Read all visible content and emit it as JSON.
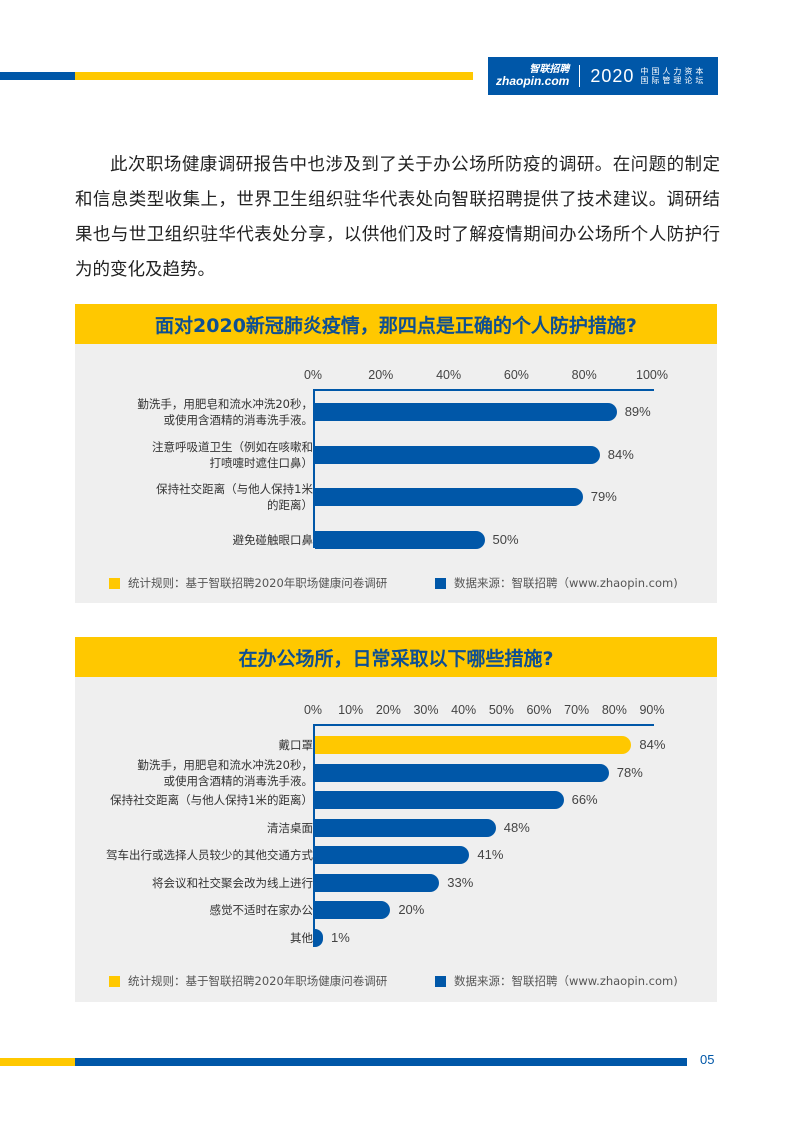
{
  "header": {
    "logo_brand_cn": "智联招聘",
    "logo_brand_en": "zhaopin.com",
    "logo_year": "2020",
    "logo_forum_line1": "中国人力资本",
    "logo_forum_line2": "国际管理论坛",
    "colors": {
      "blue": "#0057a8",
      "yellow": "#ffc800"
    }
  },
  "intro": {
    "text": "此次职场健康调研报告中也涉及到了关于办公场所防疫的调研。在问题的制定和信息类型收集上，世界卫生组织驻华代表处向智联招聘提供了技术建议。调研结果也与世卫组织驻华代表处分享，以供他们及时了解疫情期间办公场所个人防护行为的变化及趋势。"
  },
  "chart_data": [
    {
      "type": "bar",
      "orientation": "horizontal",
      "title": "面对2020新冠肺炎疫情，那四点是正确的个人防护措施?",
      "xlabel": "",
      "ylabel": "",
      "xlim": [
        0,
        100
      ],
      "x_ticks": [
        "0%",
        "20%",
        "40%",
        "60%",
        "80%",
        "100%"
      ],
      "categories": [
        "勤洗手，用肥皂和流水冲洗20秒，或使用含酒精的消毒洗手液。",
        "注意呼吸道卫生（例如在咳嗽和打喷嚏时遮住口鼻）",
        "保持社交距离（与他人保持1米的距离）",
        "避免碰触眼口鼻"
      ],
      "values": [
        89,
        84,
        79,
        50
      ],
      "value_labels": [
        "89%",
        "84%",
        "79%",
        "50%"
      ],
      "bar_colors": [
        "#0057a8",
        "#0057a8",
        "#0057a8",
        "#0057a8"
      ],
      "grid": false,
      "legend": [
        {
          "color": "#ffc800",
          "label": "统计规则：基于智联招聘2020年职场健康问卷调研"
        },
        {
          "color": "#0057a8",
          "label": "数据来源：智联招聘（www.zhaopin.com)"
        }
      ]
    },
    {
      "type": "bar",
      "orientation": "horizontal",
      "title": "在办公场所，日常采取以下哪些措施?",
      "xlabel": "",
      "ylabel": "",
      "xlim": [
        0,
        90
      ],
      "x_ticks": [
        "0%",
        "10%",
        "20%",
        "30%",
        "40%",
        "50%",
        "60%",
        "70%",
        "80%",
        "90%"
      ],
      "categories": [
        "戴口罩",
        "勤洗手，用肥皂和流水冲洗20秒，或使用含酒精的消毒洗手液。",
        "保持社交距离（与他人保持1米的距离）",
        "清洁桌面",
        "驾车出行或选择人员较少的其他交通方式",
        "将会议和社交聚会改为线上进行",
        "感觉不适时在家办公",
        "其他"
      ],
      "values": [
        84,
        78,
        66,
        48,
        41,
        33,
        20,
        1
      ],
      "value_labels": [
        "84%",
        "78%",
        "66%",
        "48%",
        "41%",
        "33%",
        "20%",
        "1%"
      ],
      "bar_colors": [
        "#ffc800",
        "#0057a8",
        "#0057a8",
        "#0057a8",
        "#0057a8",
        "#0057a8",
        "#0057a8",
        "#0057a8"
      ],
      "grid": false,
      "legend": [
        {
          "color": "#ffc800",
          "label": "统计规则：基于智联招聘2020年职场健康问卷调研"
        },
        {
          "color": "#0057a8",
          "label": "数据来源：智联招聘（www.zhaopin.com)"
        }
      ]
    }
  ],
  "chart1": {
    "title": "面对2020新冠肺炎疫情，那四点是正确的个人防护措施?",
    "ticks": [
      "0%",
      "20%",
      "40%",
      "60%",
      "80%",
      "100%"
    ],
    "rows": [
      {
        "line1": "勤洗手，用肥皂和流水冲洗20秒，",
        "line2": "或使用含酒精的消毒洗手液。",
        "value": 89,
        "label": "89%"
      },
      {
        "line1": "注意呼吸道卫生（例如在咳嗽和",
        "line2": "打喷嚏时遮住口鼻）",
        "value": 84,
        "label": "84%"
      },
      {
        "line1": "保持社交距离（与他人保持1米",
        "line2": "的距离）",
        "value": 79,
        "label": "79%"
      },
      {
        "line1": "避免碰触眼口鼻",
        "line2": "",
        "value": 50,
        "label": "50%"
      }
    ],
    "legend_rule": "统计规则：基于智联招聘2020年职场健康问卷调研",
    "legend_source": "数据来源：智联招聘（www.zhaopin.com)"
  },
  "chart2": {
    "title": "在办公场所，日常采取以下哪些措施?",
    "ticks": [
      "0%",
      "10%",
      "20%",
      "30%",
      "40%",
      "50%",
      "60%",
      "70%",
      "80%",
      "90%"
    ],
    "rows": [
      {
        "line1": "戴口罩",
        "line2": "",
        "value": 84,
        "label": "84%"
      },
      {
        "line1": "勤洗手，用肥皂和流水冲洗20秒，",
        "line2": "或使用含酒精的消毒洗手液。",
        "value": 78,
        "label": "78%"
      },
      {
        "line1": "保持社交距离（与他人保持1米的距离）",
        "line2": "",
        "value": 66,
        "label": "66%"
      },
      {
        "line1": "清洁桌面",
        "line2": "",
        "value": 48,
        "label": "48%"
      },
      {
        "line1": "驾车出行或选择人员较少的其他交通方式",
        "line2": "",
        "value": 41,
        "label": "41%"
      },
      {
        "line1": "将会议和社交聚会改为线上进行",
        "line2": "",
        "value": 33,
        "label": "33%"
      },
      {
        "line1": "感觉不适时在家办公",
        "line2": "",
        "value": 20,
        "label": "20%"
      },
      {
        "line1": "其他",
        "line2": "",
        "value": 1,
        "label": "1%"
      }
    ],
    "legend_rule": "统计规则：基于智联招聘2020年职场健康问卷调研",
    "legend_source": "数据来源：智联招聘（www.zhaopin.com)"
  },
  "footer": {
    "page_number": "05"
  }
}
